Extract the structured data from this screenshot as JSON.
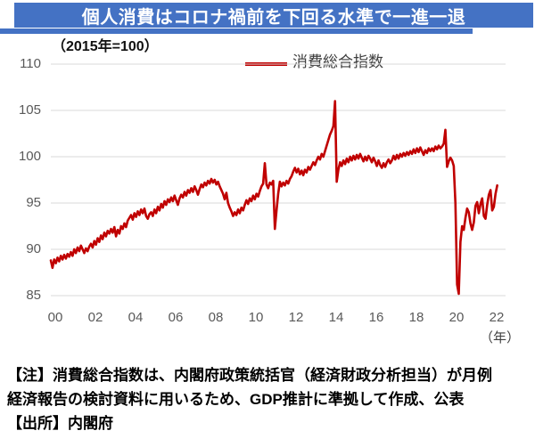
{
  "header": {
    "title": "個人消費はコロナ禍前を下回る水準で一進一退"
  },
  "subtitle": "（2015年=100）",
  "legend": {
    "label": "消費総合指数"
  },
  "x_axis_unit": "（年）",
  "notes": {
    "line1": "【注】消費総合指数は、内閣府政策統括官（経済財政分析担当）が月例",
    "line2": "経済報告の検討資料に用いるため、GDP推計に準拠して作成、公表",
    "line3": "【出所】内閣府"
  },
  "colors": {
    "banner_blue": "#4472C4",
    "line_red": "#C00000",
    "grid_gray": "#D9D9D9",
    "tick_gray": "#595959"
  },
  "chart_data": {
    "type": "line",
    "title": "個人消費はコロナ禍前を下回る水準で一進一退",
    "subtitle": "（2015年=100）",
    "series_name": "消費総合指数",
    "index_base": "2015年=100",
    "frequency": "monthly",
    "x_start_year": 2000,
    "x_tick_labels": [
      "00",
      "02",
      "04",
      "06",
      "08",
      "10",
      "12",
      "14",
      "16",
      "18",
      "20",
      "22"
    ],
    "x_tick_years": [
      2000,
      2002,
      2004,
      2006,
      2008,
      2010,
      2012,
      2014,
      2016,
      2018,
      2020,
      2022
    ],
    "y_ticks": [
      85,
      90,
      95,
      100,
      105,
      110
    ],
    "ylim": [
      85,
      110
    ],
    "grid": true,
    "legend_position": "top",
    "annotations": {
      "lehman_trough_2009": 93.6,
      "earthquake_trough_2011_03": 92.2,
      "tax_hike_peak_2014_03": 106.0,
      "tax_hike_peak_2019_09": 102.9,
      "covid_trough_2020": 85.2,
      "final_value_2022": 96.9
    },
    "values": [
      88.8,
      88.0,
      88.9,
      88.5,
      89.1,
      88.7,
      89.3,
      88.9,
      89.4,
      89.0,
      89.5,
      89.2,
      89.7,
      89.3,
      90.0,
      89.6,
      90.2,
      89.8,
      90.4,
      90.0,
      89.6,
      90.1,
      89.8,
      90.3,
      90.6,
      90.2,
      90.9,
      90.5,
      91.2,
      90.8,
      91.5,
      91.1,
      91.8,
      91.4,
      92.0,
      91.7,
      92.2,
      91.8,
      92.4,
      91.4,
      92.1,
      91.7,
      92.5,
      92.2,
      92.8,
      92.4,
      93.1,
      93.4,
      93.7,
      93.2,
      93.9,
      93.5,
      94.1,
      93.7,
      94.3,
      93.9,
      94.4,
      93.6,
      93.3,
      93.8,
      94.0,
      93.6,
      94.3,
      93.9,
      94.6,
      94.2,
      94.9,
      94.5,
      95.2,
      94.8,
      95.4,
      95.1,
      95.6,
      95.2,
      95.8,
      95.3,
      94.8,
      95.5,
      95.9,
      95.6,
      96.2,
      95.8,
      96.4,
      96.1,
      96.6,
      96.2,
      96.8,
      96.4,
      95.9,
      96.5,
      97.0,
      96.7,
      97.2,
      96.9,
      97.4,
      97.1,
      97.6,
      97.2,
      97.5,
      97.0,
      97.3,
      96.8,
      96.4,
      96.0,
      95.4,
      96.1,
      95.0,
      94.5,
      94.1,
      93.6,
      94.0,
      93.7,
      94.3,
      93.9,
      94.5,
      94.2,
      94.8,
      95.3,
      94.9,
      95.5,
      95.2,
      95.8,
      95.4,
      96.0,
      95.7,
      96.3,
      96.8,
      97.1,
      99.3,
      97.0,
      96.6,
      97.2,
      97.0,
      97.4,
      92.2,
      94.2,
      96.0,
      97.3,
      96.8,
      97.2,
      96.9,
      97.4,
      97.1,
      97.6,
      97.9,
      98.4,
      98.8,
      98.3,
      98.7,
      98.1,
      98.5,
      98.0,
      98.6,
      98.3,
      98.9,
      98.6,
      99.0,
      99.4,
      99.1,
      99.6,
      100.0,
      99.7,
      100.3,
      100.0,
      100.6,
      101.2,
      101.8,
      102.4,
      102.8,
      103.3,
      106.0,
      97.3,
      98.6,
      99.4,
      99.0,
      99.6,
      99.2,
      99.8,
      99.4,
      100.0,
      99.6,
      100.1,
      99.7,
      100.2,
      99.8,
      100.3,
      99.9,
      99.5,
      100.0,
      99.6,
      100.1,
      99.8,
      99.4,
      99.9,
      99.5,
      99.0,
      99.6,
      99.1,
      98.8,
      99.3,
      98.9,
      99.4,
      99.7,
      99.3,
      99.6,
      100.1,
      99.7,
      100.2,
      99.8,
      100.3,
      100.0,
      100.4,
      100.1,
      100.5,
      100.2,
      100.6,
      100.3,
      100.8,
      100.4,
      100.9,
      100.5,
      101.0,
      100.6,
      100.2,
      100.7,
      100.4,
      100.9,
      100.6,
      100.9,
      100.6,
      101.1,
      100.8,
      101.2,
      100.9,
      101.1,
      101.4,
      102.9,
      98.9,
      99.5,
      99.9,
      99.6,
      99.0,
      95.0,
      86.2,
      85.2,
      90.8,
      92.5,
      92.1,
      93.4,
      94.4,
      94.0,
      92.8,
      92.1,
      92.9,
      94.7,
      95.1,
      93.9,
      94.9,
      95.5,
      93.6,
      93.3,
      94.8,
      95.9,
      96.4,
      94.2,
      94.6,
      96.0,
      96.9
    ]
  }
}
